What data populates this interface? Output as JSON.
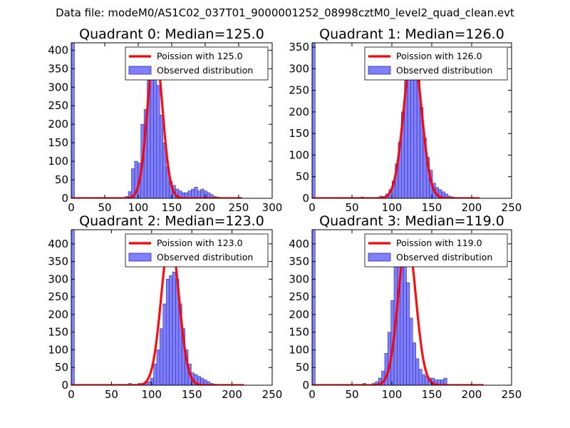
{
  "suptitle": "Data file: modeM0/AS1C02_037T01_9000001252_08998cztM0_level2_quad_clean.evt",
  "chart_data": [
    {
      "type": "bar",
      "title": "Quadrant 0: Median=125.0",
      "xlim": [
        0,
        300
      ],
      "ylim": [
        0,
        420
      ],
      "xticks": [
        0,
        50,
        100,
        150,
        200,
        250,
        300
      ],
      "yticks": [
        0,
        50,
        100,
        150,
        200,
        250,
        300,
        350,
        400
      ],
      "legend": {
        "fit": "Poission with 125.0",
        "observed": "Observed distribution",
        "placement": "top-right"
      },
      "poisson_mean": 125.0,
      "poisson_peak": 405,
      "poisson_sigma": 11.2,
      "fit_x_range": [
        0,
        255
      ],
      "bin_width": 4.7,
      "bars": [
        [
          0,
          420
        ],
        [
          80.5,
          5
        ],
        [
          85.2,
          18
        ],
        [
          89.9,
          80
        ],
        [
          94.6,
          100
        ],
        [
          99.3,
          95
        ],
        [
          104,
          200
        ],
        [
          108.7,
          240
        ],
        [
          113.4,
          390
        ],
        [
          118.1,
          405
        ],
        [
          122.8,
          375
        ],
        [
          127.5,
          305
        ],
        [
          132.2,
          225
        ],
        [
          136.9,
          150
        ],
        [
          141.6,
          85
        ],
        [
          146.3,
          45
        ],
        [
          151,
          35
        ],
        [
          155.7,
          25
        ],
        [
          160.4,
          20
        ],
        [
          165.1,
          15
        ],
        [
          169.8,
          15
        ],
        [
          174.5,
          20
        ],
        [
          179.2,
          25
        ],
        [
          183.9,
          30
        ],
        [
          188.6,
          20
        ],
        [
          193.3,
          25
        ],
        [
          198,
          20
        ],
        [
          202.7,
          15
        ],
        [
          207.4,
          10
        ],
        [
          212.1,
          5
        ],
        [
          216.8,
          3
        ]
      ]
    },
    {
      "type": "bar",
      "title": "Quadrant 1: Median=126.0",
      "xlim": [
        0,
        250
      ],
      "ylim": [
        0,
        360
      ],
      "xticks": [
        0,
        50,
        100,
        150,
        200,
        250
      ],
      "yticks": [
        0,
        50,
        100,
        150,
        200,
        250,
        300,
        350
      ],
      "legend": {
        "fit": "Poission with 126.0",
        "observed": "Observed distribution",
        "placement": "top-right"
      },
      "poisson_mean": 126.0,
      "poisson_peak": 340,
      "poisson_sigma": 11.2,
      "fit_x_range": [
        0,
        210
      ],
      "bin_width": 3.9,
      "bars": [
        [
          0,
          360
        ],
        [
          61.2,
          3
        ],
        [
          84.6,
          5
        ],
        [
          92.4,
          10
        ],
        [
          96.3,
          20
        ],
        [
          100.2,
          40
        ],
        [
          104.1,
          80
        ],
        [
          108,
          130
        ],
        [
          111.9,
          200
        ],
        [
          115.8,
          280
        ],
        [
          119.7,
          340
        ],
        [
          123.6,
          315
        ],
        [
          127.5,
          340
        ],
        [
          131.4,
          310
        ],
        [
          135.3,
          210
        ],
        [
          139.2,
          140
        ],
        [
          143.1,
          95
        ],
        [
          147,
          65
        ],
        [
          150.9,
          35
        ],
        [
          154.8,
          25
        ],
        [
          158.7,
          20
        ],
        [
          162.6,
          15
        ],
        [
          166.5,
          10
        ],
        [
          170.4,
          5
        ],
        [
          174.3,
          3
        ]
      ]
    },
    {
      "type": "bar",
      "title": "Quadrant 2: Median=123.0",
      "xlim": [
        0,
        250
      ],
      "ylim": [
        0,
        440
      ],
      "xticks": [
        0,
        50,
        100,
        150,
        200,
        250
      ],
      "yticks": [
        0,
        50,
        100,
        150,
        200,
        250,
        300,
        350,
        400
      ],
      "legend": {
        "fit": "Poission with 123.0",
        "observed": "Observed distribution",
        "placement": "top-right"
      },
      "poisson_mean": 123.0,
      "poisson_peak": 420,
      "poisson_sigma": 10.9,
      "fit_x_range": [
        0,
        215
      ],
      "bin_width": 3.9,
      "bars": [
        [
          0,
          440
        ],
        [
          71.2,
          5
        ],
        [
          83,
          5
        ],
        [
          90.8,
          5
        ],
        [
          94.7,
          10
        ],
        [
          98.6,
          20
        ],
        [
          102.5,
          60
        ],
        [
          106.4,
          100
        ],
        [
          110.3,
          160
        ],
        [
          114.2,
          230
        ],
        [
          118.1,
          300
        ],
        [
          122,
          310
        ],
        [
          125.9,
          320
        ],
        [
          129.8,
          300
        ],
        [
          133.7,
          230
        ],
        [
          137.6,
          160
        ],
        [
          141.5,
          100
        ],
        [
          145.4,
          60
        ],
        [
          149.3,
          35
        ],
        [
          153.2,
          30
        ],
        [
          157.1,
          25
        ],
        [
          161,
          20
        ],
        [
          164.9,
          15
        ],
        [
          168.8,
          10
        ],
        [
          172.7,
          5
        ],
        [
          176.6,
          3
        ]
      ]
    },
    {
      "type": "bar",
      "title": "Quadrant 3: Median=119.0",
      "xlim": [
        0,
        250
      ],
      "ylim": [
        0,
        440
      ],
      "xticks": [
        0,
        50,
        100,
        150,
        200,
        250
      ],
      "yticks": [
        0,
        50,
        100,
        150,
        200,
        250,
        300,
        350,
        400
      ],
      "legend": {
        "fit": "Poission with 119.0",
        "observed": "Observed distribution",
        "placement": "top-right"
      },
      "poisson_mean": 119.0,
      "poisson_peak": 420,
      "poisson_sigma": 10.9,
      "fit_x_range": [
        0,
        215
      ],
      "bin_width": 3.9,
      "bars": [
        [
          0,
          440
        ],
        [
          63.7,
          5
        ],
        [
          75.4,
          5
        ],
        [
          79.3,
          10
        ],
        [
          83.2,
          20
        ],
        [
          87.1,
          40
        ],
        [
          91,
          90
        ],
        [
          94.9,
          150
        ],
        [
          98.8,
          240
        ],
        [
          102.7,
          360
        ],
        [
          106.6,
          400
        ],
        [
          110.5,
          380
        ],
        [
          114.4,
          350
        ],
        [
          118.3,
          290
        ],
        [
          122.2,
          190
        ],
        [
          126.1,
          120
        ],
        [
          130,
          75
        ],
        [
          133.9,
          45
        ],
        [
          137.8,
          30
        ],
        [
          141.7,
          25
        ],
        [
          145.6,
          20
        ],
        [
          149.5,
          20
        ],
        [
          153.4,
          15
        ],
        [
          157.3,
          15
        ],
        [
          161.2,
          15
        ],
        [
          165.1,
          20
        ]
      ]
    }
  ]
}
